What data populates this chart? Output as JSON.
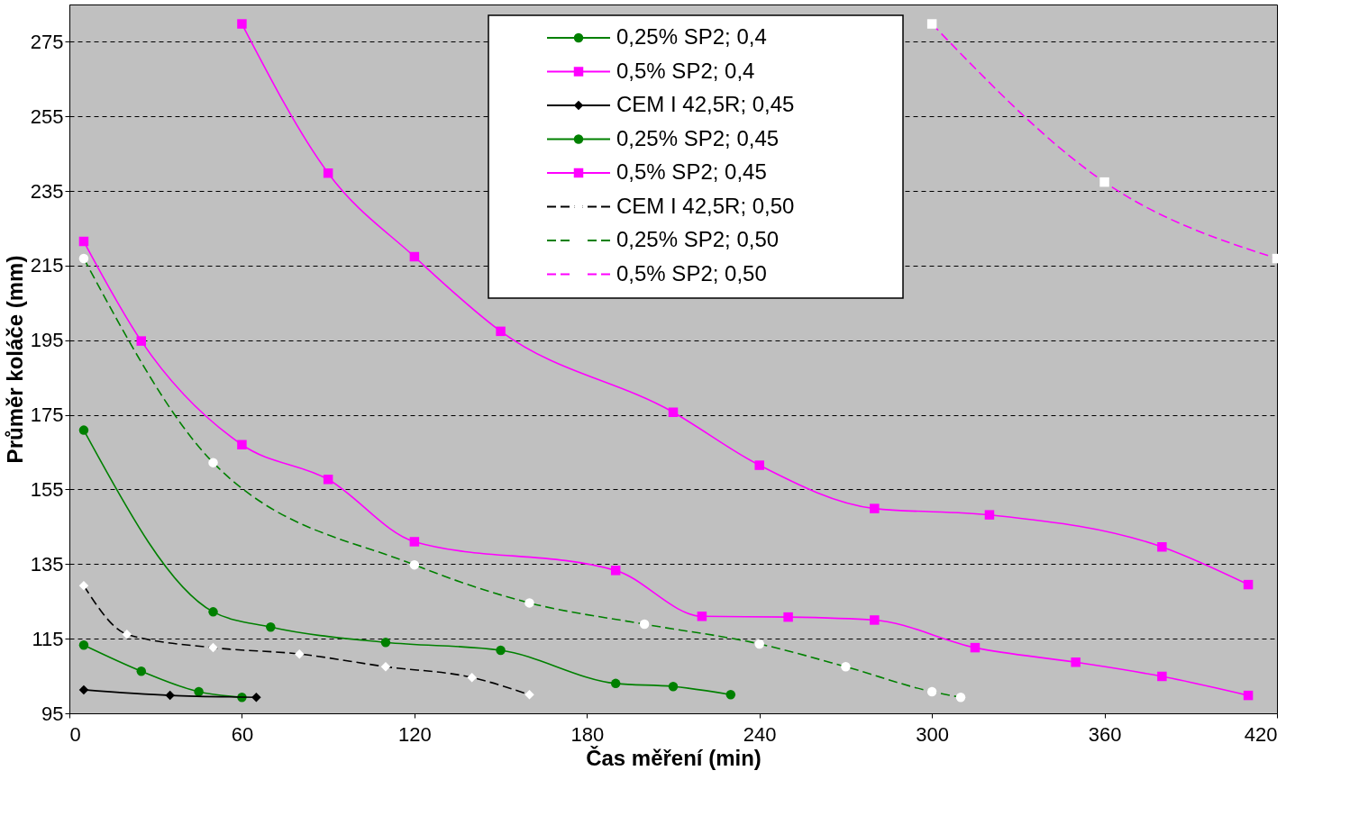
{
  "chart_data": {
    "type": "line",
    "xlabel": "Čas měření (min)",
    "ylabel": "Průměr koláče (mm)",
    "xlim": [
      0,
      420
    ],
    "xticks": [
      0,
      60,
      120,
      180,
      240,
      300,
      360,
      420
    ],
    "ylim": [
      95,
      285
    ],
    "yticks": [
      95,
      115,
      135,
      155,
      175,
      195,
      215,
      235,
      255,
      275
    ],
    "grid": "y",
    "legend": "top",
    "series": [
      {
        "name": "0,25% SP2; 0,4",
        "color": "#008000",
        "marker": "circle",
        "line_style": "solid",
        "x": [
          5,
          25,
          45,
          60
        ],
        "values": [
          113.3,
          106.3,
          100.8,
          99.3
        ]
      },
      {
        "name": "0,5% SP2; 0,4",
        "color": "#ff00ff",
        "marker": "square",
        "line_style": "solid",
        "x": [
          5,
          25,
          60,
          90,
          120,
          190,
          220,
          250,
          280,
          315,
          350,
          380,
          410
        ],
        "values": [
          221.5,
          194.8,
          167,
          157.7,
          141,
          133.3,
          121,
          120.8,
          120,
          112.6,
          108.7,
          104.9,
          99.8
        ]
      },
      {
        "name": "CEM I 42,5R; 0,45",
        "color": "#000000",
        "marker": "diamond",
        "line_style": "solid",
        "x": [
          5,
          35,
          65
        ],
        "values": [
          101.3,
          99.8,
          99.3
        ]
      },
      {
        "name": "0,25% SP2; 0,45",
        "color": "#008000",
        "marker": "circle",
        "line_style": "solid",
        "x": [
          5,
          50,
          70,
          110,
          150,
          190,
          210,
          230
        ],
        "values": [
          170.9,
          122.2,
          118.1,
          114,
          111.9,
          103,
          102.2,
          100
        ]
      },
      {
        "name": "0,5% SP2; 0,45",
        "color": "#ff00ff",
        "marker": "square",
        "line_style": "solid",
        "x": [
          60,
          90,
          120,
          150,
          210,
          240,
          280,
          320,
          380,
          410
        ],
        "values": [
          279.8,
          239.8,
          217.4,
          197.4,
          175.7,
          161.5,
          149.9,
          148.2,
          139.6,
          129.5
        ]
      },
      {
        "name": "CEM I 42,5R; 0,50",
        "color": "#000000",
        "marker": "diamond",
        "line_style": "dashed",
        "x": [
          5,
          20,
          50,
          80,
          110,
          140,
          160
        ],
        "values": [
          129.2,
          116.2,
          112.6,
          110.9,
          107.5,
          104.6,
          100
        ]
      },
      {
        "name": "0,25% SP2; 0,50",
        "color": "#008000",
        "marker": "circle",
        "line_style": "dashed",
        "x": [
          5,
          50,
          120,
          160,
          200,
          240,
          270,
          300,
          310
        ],
        "values": [
          216.9,
          162.2,
          134.8,
          124.6,
          118.9,
          113.6,
          107.5,
          100.8,
          99.3
        ]
      },
      {
        "name": "0,5% SP2; 0,50",
        "color": "#ff00ff",
        "marker": "square",
        "line_style": "dashed",
        "x": [
          300,
          360,
          420
        ],
        "values": [
          279.8,
          237.4,
          216.9
        ]
      }
    ]
  }
}
